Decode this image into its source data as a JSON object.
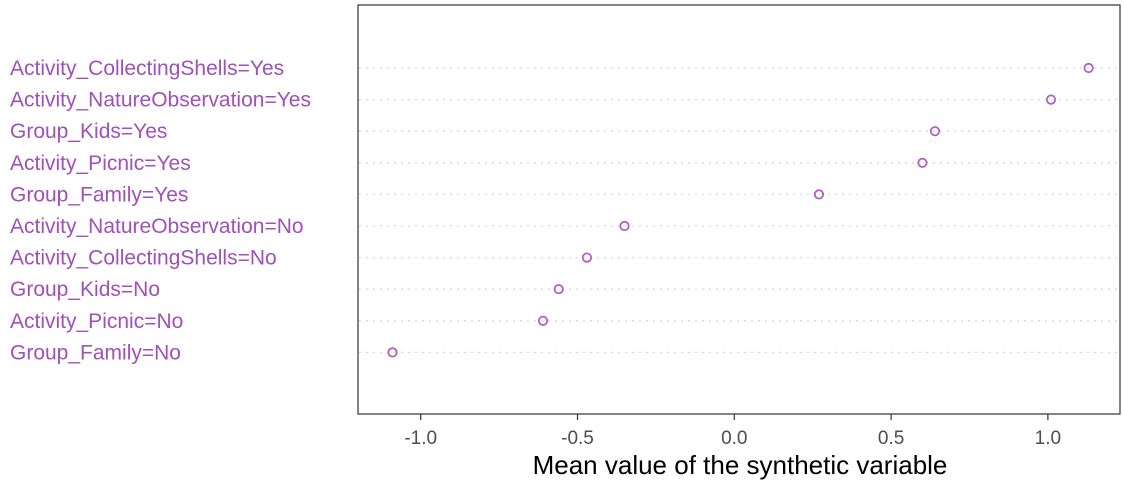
{
  "chart_data": {
    "type": "scatter",
    "xlabel": "Mean value of the synthetic variable",
    "xlim": [
      -1.2,
      1.23
    ],
    "x_ticks": [
      -1.0,
      -0.5,
      0.0,
      0.5,
      1.0
    ],
    "x_tick_labels": [
      "-1.0",
      "-0.5",
      "0.0",
      "0.5",
      "1.0"
    ],
    "grid": "horizontal-dotted",
    "categories": [
      "Activity_CollectingShells=Yes",
      "Activity_NatureObservation=Yes",
      "Group_Kids=Yes",
      "Activity_Picnic=Yes",
      "Group_Family=Yes",
      "Activity_NatureObservation=No",
      "Activity_CollectingShells=No",
      "Group_Kids=No",
      "Activity_Picnic=No",
      "Group_Family=No"
    ],
    "values": [
      1.13,
      1.01,
      0.64,
      0.6,
      0.27,
      -0.35,
      -0.47,
      -0.56,
      -0.61,
      -1.09
    ],
    "colors": {
      "point": "#b060c0",
      "label": "#a050b8",
      "grid": "#d9d9d9",
      "frame": "#333333",
      "tick_text": "#4d4d4d"
    }
  }
}
